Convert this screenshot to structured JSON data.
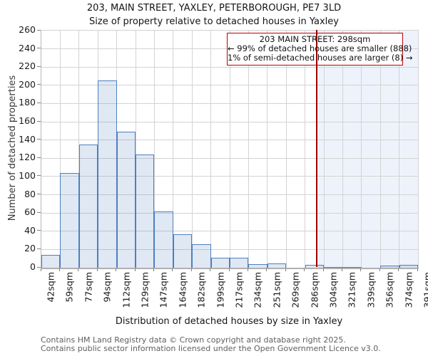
{
  "header": {
    "title": "203, MAIN STREET, YAXLEY, PETERBOROUGH, PE7 3LD",
    "subtitle": "Size of property relative to detached houses in Yaxley"
  },
  "annotation": {
    "line1": "203 MAIN STREET: 298sqm",
    "line2": "← 99% of detached houses are smaller (888)",
    "line3": "1% of semi-detached houses are larger (8) →"
  },
  "footer": {
    "line1": "Contains HM Land Registry data © Crown copyright and database right 2025.",
    "line2": "Contains public sector information licensed under the Open Government Licence v3.0."
  },
  "chart_data": {
    "type": "bar",
    "title": "203, MAIN STREET, YAXLEY, PETERBOROUGH, PE7 3LD",
    "subtitle": "Size of property relative to detached houses in Yaxley",
    "xlabel": "Distribution of detached houses by size in Yaxley",
    "ylabel": "Number of detached properties",
    "categories": [
      "42sqm",
      "59sqm",
      "77sqm",
      "94sqm",
      "112sqm",
      "129sqm",
      "147sqm",
      "164sqm",
      "182sqm",
      "199sqm",
      "217sqm",
      "234sqm",
      "251sqm",
      "269sqm",
      "286sqm",
      "304sqm",
      "321sqm",
      "339sqm",
      "356sqm",
      "374sqm",
      "391sqm"
    ],
    "bin_edges_sqm": [
      42,
      59,
      77,
      94,
      112,
      129,
      147,
      164,
      182,
      199,
      217,
      234,
      251,
      269,
      286,
      304,
      321,
      339,
      356,
      374,
      391
    ],
    "values": [
      14,
      104,
      135,
      205,
      149,
      124,
      62,
      37,
      26,
      11,
      11,
      4,
      5,
      0,
      3,
      1,
      1,
      0,
      2,
      3
    ],
    "ylim": [
      0,
      260
    ],
    "yticks": [
      0,
      20,
      40,
      60,
      80,
      100,
      120,
      140,
      160,
      180,
      200,
      220,
      240,
      260
    ],
    "grid": true,
    "legend": "none",
    "marker": {
      "label": "203 MAIN STREET",
      "value_sqm": 298,
      "line_color": "#a00000"
    },
    "shaded_region": {
      "from_sqm": 298,
      "to_sqm": 391,
      "color": "rgba(100,140,220,0.11)"
    },
    "colors": {
      "bar_fill": "rgba(79,129,189,0.18)",
      "bar_border": "#4e7fc0",
      "gridline": "#d3d3d3",
      "axis": "#b0b0b0",
      "tick": "#808080",
      "annotation_border": "#c00000",
      "text": "#1a1a1a",
      "footer_text": "#606060"
    }
  }
}
